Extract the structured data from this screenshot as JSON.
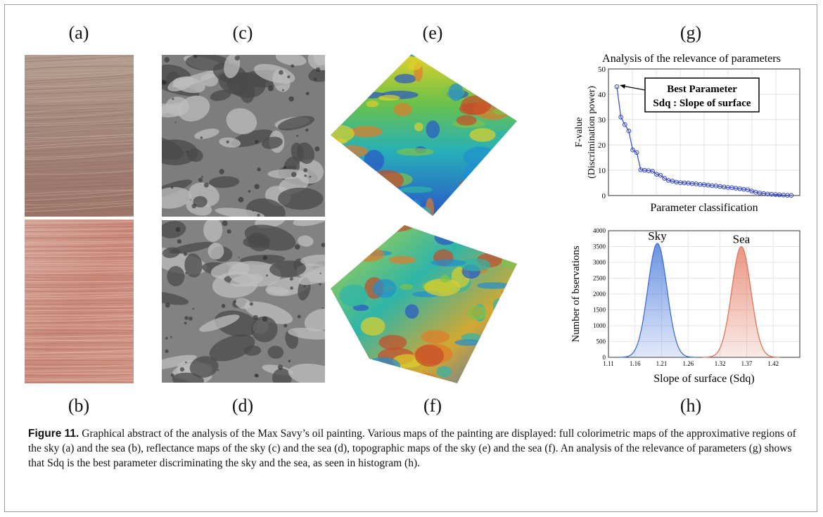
{
  "labels": {
    "a": "(a)",
    "b": "(b)",
    "c": "(c)",
    "d": "(d)",
    "e": "(e)",
    "f": "(f)",
    "g": "(g)",
    "h": "(h)"
  },
  "chart_data": [
    {
      "type": "line",
      "title": "Analysis of the relevance of parameters",
      "xlabel": "Parameter classification",
      "ylabel": "F-value (Discrimination power)",
      "ylabel_line1": "F-value",
      "ylabel_line2": "(Discrimination power)",
      "ylim": [
        0,
        50
      ],
      "yticks": [
        "0",
        "10",
        "20",
        "30",
        "40",
        "50"
      ],
      "grid": true,
      "annotation": {
        "line1": "Best Parameter",
        "line2": "Sdq : Slope of surface"
      },
      "series": [
        {
          "values": [
            43,
            31,
            28,
            25.5,
            18,
            17,
            10.2,
            10,
            9.8,
            9.6,
            8.4,
            8,
            6.8,
            6,
            5.7,
            5.3,
            5.1,
            5,
            4.9,
            4.7,
            4.6,
            4.4,
            4.3,
            4.1,
            3.9,
            3.8,
            3.6,
            3.4,
            3.2,
            3.1,
            2.9,
            2.7,
            2.5,
            2.3,
            1.8,
            1.3,
            1,
            0.8,
            0.6,
            0.5,
            0.4,
            0.3,
            0.2,
            0.1,
            0.05
          ]
        }
      ]
    },
    {
      "type": "area",
      "xlabel": "Slope of surface (Sdq)",
      "ylabel": "Number of bservations",
      "xlim": [
        1.11,
        1.47
      ],
      "ylim": [
        0,
        4000
      ],
      "xticks": [
        "1.11",
        "1.16",
        "1.21",
        "1.26",
        "1.32",
        "1.37",
        "1.42"
      ],
      "yticks": [
        "0",
        "500",
        "1000",
        "1500",
        "2000",
        "2500",
        "3000",
        "3500",
        "4000"
      ],
      "grid": true,
      "series": [
        {
          "name": "Sky",
          "mean": 1.202,
          "sd": 0.018,
          "peak": 3600,
          "color": "#3b6fd8"
        },
        {
          "name": "Sea",
          "mean": 1.36,
          "sd": 0.018,
          "peak": 3500,
          "color": "#e2735a"
        }
      ]
    }
  ],
  "caption": {
    "label": "Figure 11.",
    "text": " Graphical abstract of the analysis of the Max Savy’s oil painting. Various maps of the painting are displayed: full colorimetric maps of the approximative regions of the sky (a) and the sea (b), reflectance maps of the sky (c) and the sea (d), topographic maps of the sky (e) and the sea (f). An analysis of the relevance of parameters (g) shows that Sdq is the best parameter discriminating the sky and the sea, as seen in histogram (h)."
  }
}
